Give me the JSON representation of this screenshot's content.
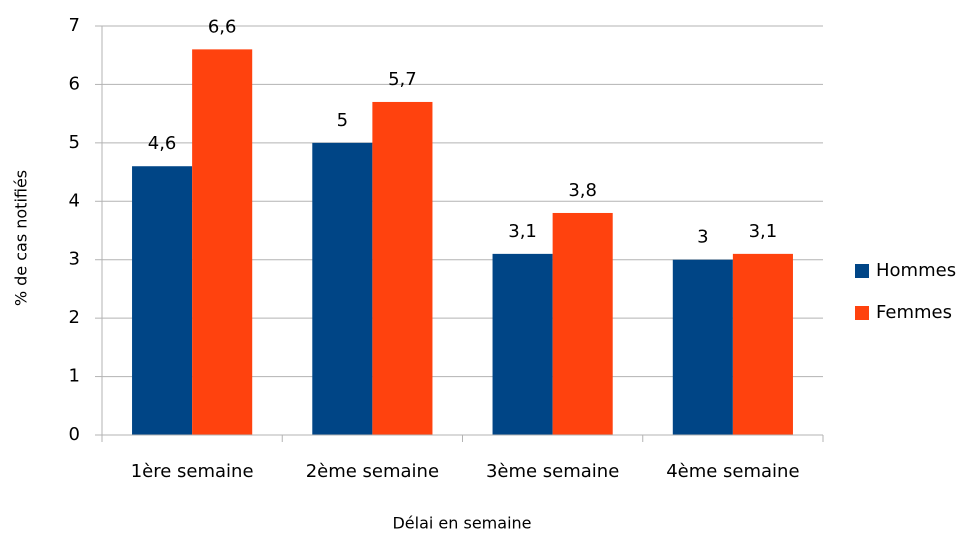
{
  "chart_data": {
    "type": "bar",
    "x_label": "Délai en semaine",
    "y_label": "% de cas notifiés",
    "categories": [
      "1ère semaine",
      "2ème semaine",
      "3ème semaine",
      "4ème semaine"
    ],
    "series": [
      {
        "name": "Hommes",
        "color": "#004586",
        "values": [
          4.6,
          5,
          3.1,
          3
        ],
        "value_labels": [
          "4,6",
          "5",
          "3,1",
          "3"
        ]
      },
      {
        "name": "Femmes",
        "color": "#ff420e",
        "values": [
          6.6,
          5.7,
          3.8,
          3.1
        ],
        "value_labels": [
          "6,6",
          "5,7",
          "3,8",
          "3,1"
        ]
      }
    ],
    "ylim": [
      0,
      7
    ],
    "yticks": [
      0,
      1,
      2,
      3,
      4,
      5,
      6,
      7
    ],
    "grid": true,
    "legend": "right"
  }
}
